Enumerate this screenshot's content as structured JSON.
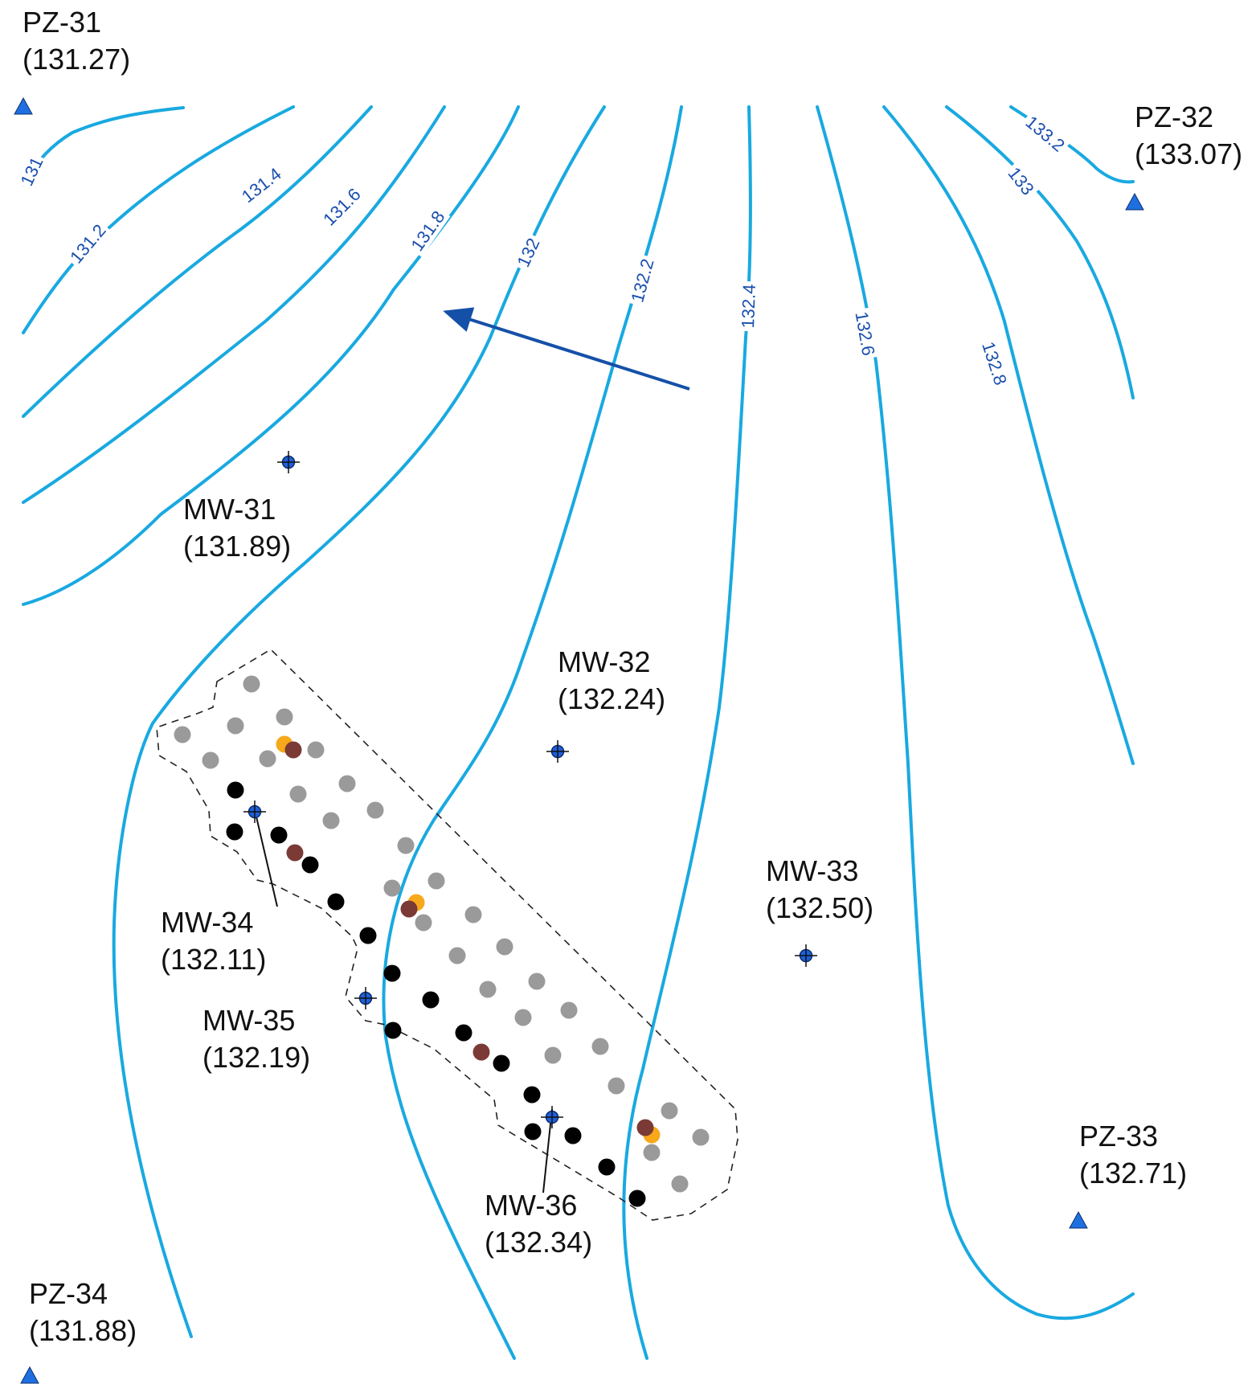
{
  "colors": {
    "contour": "#19a9e0",
    "contour_label": "#1a4fae",
    "flow_arrow": "#1550a8",
    "piezometer": "#1f6fe0",
    "well": "#1f5fd8",
    "point_gray": "#9a9a9a",
    "point_black": "#000000",
    "point_brown": "#7b3a35",
    "point_orange": "#f7a81b"
  },
  "contours": [
    {
      "value": "131",
      "label": "131"
    },
    {
      "value": "131.2",
      "label": "131.2"
    },
    {
      "value": "131.4",
      "label": "131.4"
    },
    {
      "value": "131.6",
      "label": "131.6"
    },
    {
      "value": "131.8",
      "label": "131.8"
    },
    {
      "value": "132",
      "label": "132"
    },
    {
      "value": "132.2",
      "label": "132.2"
    },
    {
      "value": "132.4",
      "label": "132.4"
    },
    {
      "value": "132.6",
      "label": "132.6"
    },
    {
      "value": "132.8",
      "label": "132.8"
    },
    {
      "value": "133",
      "label": "133"
    },
    {
      "value": "133.2",
      "label": "133.2"
    }
  ],
  "piezometers": [
    {
      "name": "PZ-31",
      "value": "(131.27)",
      "icon": "triangle-icon"
    },
    {
      "name": "PZ-32",
      "value": "(133.07)",
      "icon": "triangle-icon"
    },
    {
      "name": "PZ-33",
      "value": "(132.71)",
      "icon": "triangle-icon"
    },
    {
      "name": "PZ-34",
      "value": "(131.88)",
      "icon": "triangle-icon"
    }
  ],
  "wells": [
    {
      "name": "MW-31",
      "value": "(131.89)",
      "icon": "well-crosshair-icon"
    },
    {
      "name": "MW-32",
      "value": "(132.24)",
      "icon": "well-crosshair-icon"
    },
    {
      "name": "MW-33",
      "value": "(132.50)",
      "icon": "well-crosshair-icon"
    },
    {
      "name": "MW-34",
      "value": "(132.11)",
      "icon": "well-crosshair-icon"
    },
    {
      "name": "MW-35",
      "value": "(132.19)",
      "icon": "well-crosshair-icon"
    },
    {
      "name": "MW-36",
      "value": "(132.34)",
      "icon": "well-crosshair-icon"
    }
  ],
  "flow_direction_icon": "arrow-icon"
}
